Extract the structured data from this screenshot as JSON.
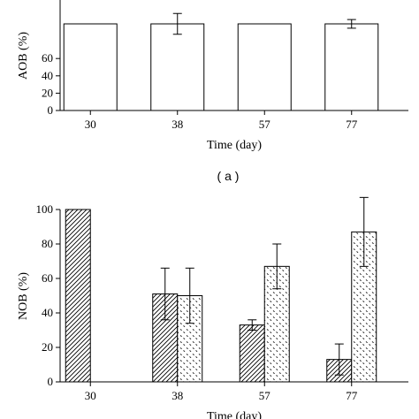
{
  "colors": {
    "axis": "#000000",
    "bar_fill": "#ffffff",
    "bar_stroke": "#000000"
  },
  "chart_data": [
    {
      "panel": "a",
      "panel_label": "( a )",
      "type": "bar",
      "xlabel": "Time (day)",
      "ylabel": "AOB (%)",
      "ylim": [
        0,
        100
      ],
      "yticks": [
        0,
        20,
        40,
        60
      ],
      "categories": [
        "30",
        "38",
        "57",
        "77"
      ],
      "series": [
        {
          "pattern": "plain",
          "values": [
            100,
            100,
            100,
            100
          ],
          "error": [
            null,
            12,
            null,
            5
          ]
        }
      ],
      "grid": false
    },
    {
      "panel": "b",
      "type": "bar",
      "xlabel": "Time (day)",
      "ylabel": "NOB (%)",
      "ylim": [
        0,
        100
      ],
      "yticks": [
        0,
        20,
        40,
        60,
        80,
        100
      ],
      "categories": [
        "30",
        "38",
        "57",
        "77"
      ],
      "series": [
        {
          "pattern": "diagonal-hatch",
          "values": [
            100,
            51,
            33,
            13
          ],
          "error": [
            null,
            15,
            3,
            9
          ]
        },
        {
          "pattern": "dotted",
          "values": [
            0,
            50,
            67,
            87
          ],
          "error": [
            null,
            16,
            13,
            20
          ]
        }
      ],
      "grid": false
    }
  ]
}
